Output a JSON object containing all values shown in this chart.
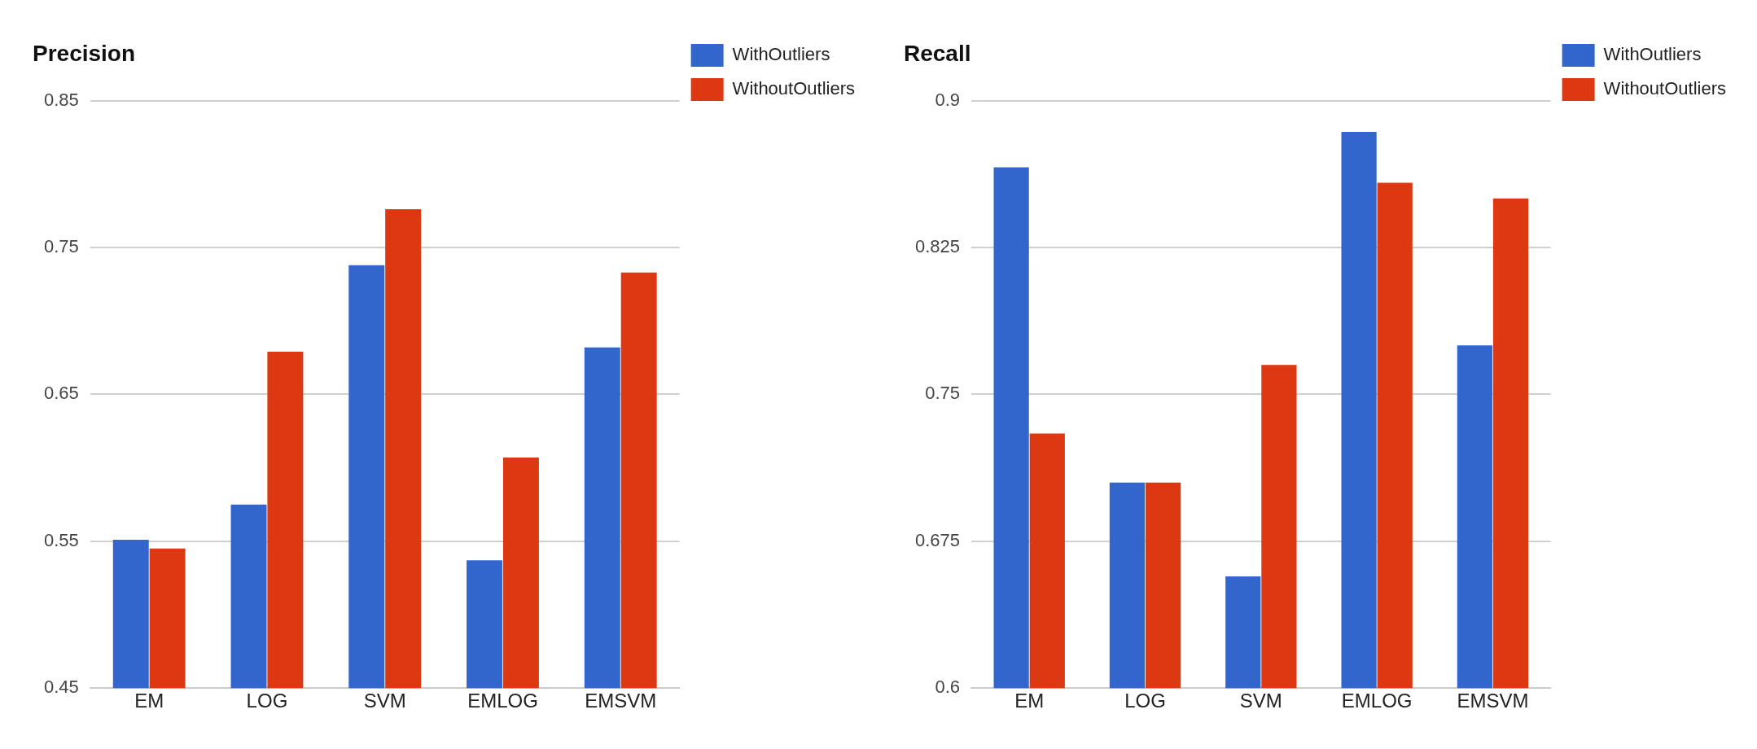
{
  "chart_data": [
    {
      "type": "bar",
      "title": "Precision",
      "categories": [
        "EM",
        "LOG",
        "SVM",
        "EMLOG",
        "EMSVM"
      ],
      "series": [
        {
          "name": "WithOutliers",
          "color": "#3366cc",
          "values": [
            0.551,
            0.575,
            0.738,
            0.537,
            0.682
          ]
        },
        {
          "name": "WithoutOutliers",
          "color": "#dc3912",
          "values": [
            0.545,
            0.679,
            0.776,
            0.607,
            0.733
          ]
        }
      ],
      "ylim": [
        0.45,
        0.85
      ],
      "yticks": [
        0.45,
        0.55,
        0.65,
        0.75,
        0.85
      ],
      "grid": "y",
      "legend": "top right"
    },
    {
      "type": "bar",
      "title": "Recall",
      "categories": [
        "EM",
        "LOG",
        "SVM",
        "EMLOG",
        "EMSVM"
      ],
      "series": [
        {
          "name": "WithOutliers",
          "color": "#3366cc",
          "values": [
            0.866,
            0.705,
            0.657,
            0.884,
            0.775
          ]
        },
        {
          "name": "WithoutOutliers",
          "color": "#dc3912",
          "values": [
            0.73,
            0.705,
            0.765,
            0.858,
            0.85
          ]
        }
      ],
      "ylim": [
        0.6,
        0.9
      ],
      "yticks": [
        0.6,
        0.675,
        0.75,
        0.825,
        0.9
      ],
      "grid": "y",
      "legend": "top right"
    }
  ]
}
